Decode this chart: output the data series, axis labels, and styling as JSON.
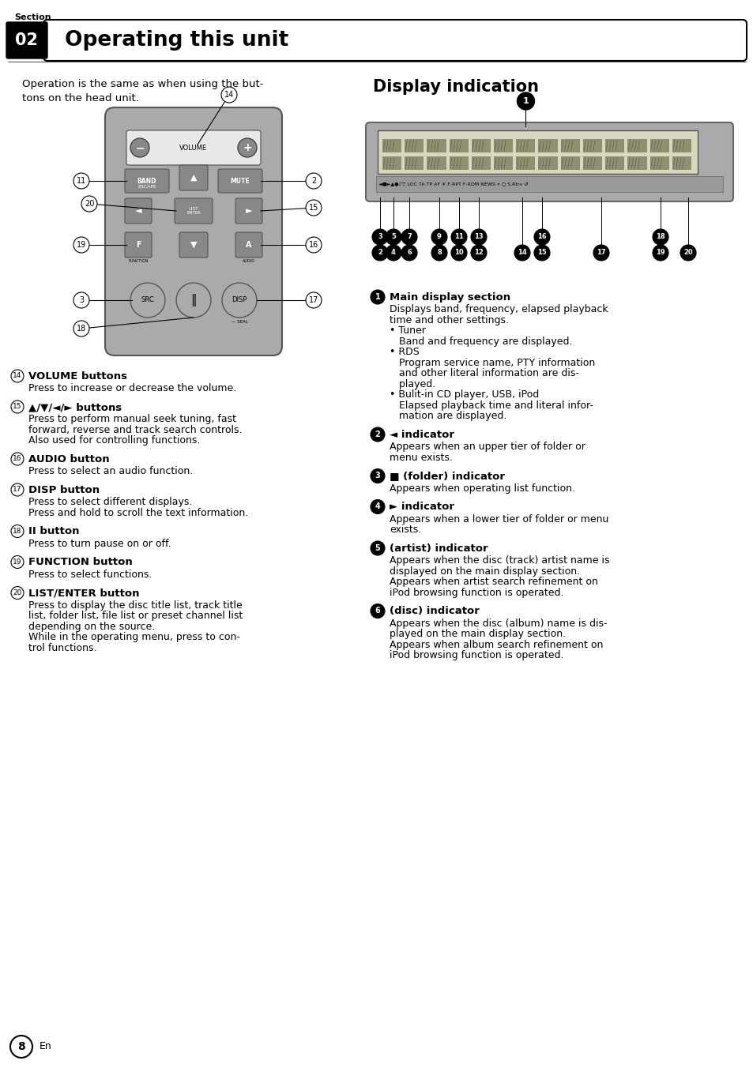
{
  "title": "Operating this unit",
  "section_num": "02",
  "section_label": "Section",
  "bg_color": "#ffffff",
  "intro_text_line1": "Operation is the same as when using the but-",
  "intro_text_line2": "tons on the head unit.",
  "display_title": "Display indication",
  "left_items": [
    {
      "num": "14",
      "bold": "VOLUME buttons",
      "body": "Press to increase or decrease the volume."
    },
    {
      "num": "15",
      "bold": "▲/▼/◄/► buttons",
      "body": "Press to perform manual seek tuning, fast\nforward, reverse and track search controls.\nAlso used for controlling functions."
    },
    {
      "num": "16",
      "bold": "AUDIO button",
      "body": "Press to select an audio function."
    },
    {
      "num": "17",
      "bold": "DISP button",
      "body": "Press to select different displays.\nPress and hold to scroll the text information."
    },
    {
      "num": "18",
      "bold": "II button",
      "body": "Press to turn pause on or off."
    },
    {
      "num": "19",
      "bold": "FUNCTION button",
      "body": "Press to select functions."
    },
    {
      "num": "20",
      "bold": "LIST/ENTER button",
      "body": "Press to display the disc title list, track title\nlist, folder list, file list or preset channel list\ndepending on the source.\nWhile in the operating menu, press to con-\ntrol functions."
    }
  ],
  "right_items": [
    {
      "num": "1",
      "bold": "Main display section",
      "body": "Displays band, frequency, elapsed playback\ntime and other settings.\n• Tuner\n   Band and frequency are displayed.\n• RDS\n   Program service name, PTY information\n   and other literal information are dis-\n   played.\n• Bulit-in CD player, USB, iPod\n   Elapsed playback time and literal infor-\n   mation are displayed."
    },
    {
      "num": "2",
      "bold": "◄ indicator",
      "body": "Appears when an upper tier of folder or\nmenu exists."
    },
    {
      "num": "3",
      "bold": "■ (folder) indicator",
      "body": "Appears when operating list function."
    },
    {
      "num": "4",
      "bold": "► indicator",
      "body": "Appears when a lower tier of folder or menu\nexists."
    },
    {
      "num": "5",
      "bold": "(artist) indicator",
      "body": "Appears when the disc (track) artist name is\ndisplayed on the main display section.\nAppears when artist search refinement on\niPod browsing function is operated."
    },
    {
      "num": "6",
      "bold": "(disc) indicator",
      "body": "Appears when the disc (album) name is dis-\nplayed on the main display section.\nAppears when album search refinement on\niPod browsing function is operated."
    }
  ],
  "page_num": "8"
}
